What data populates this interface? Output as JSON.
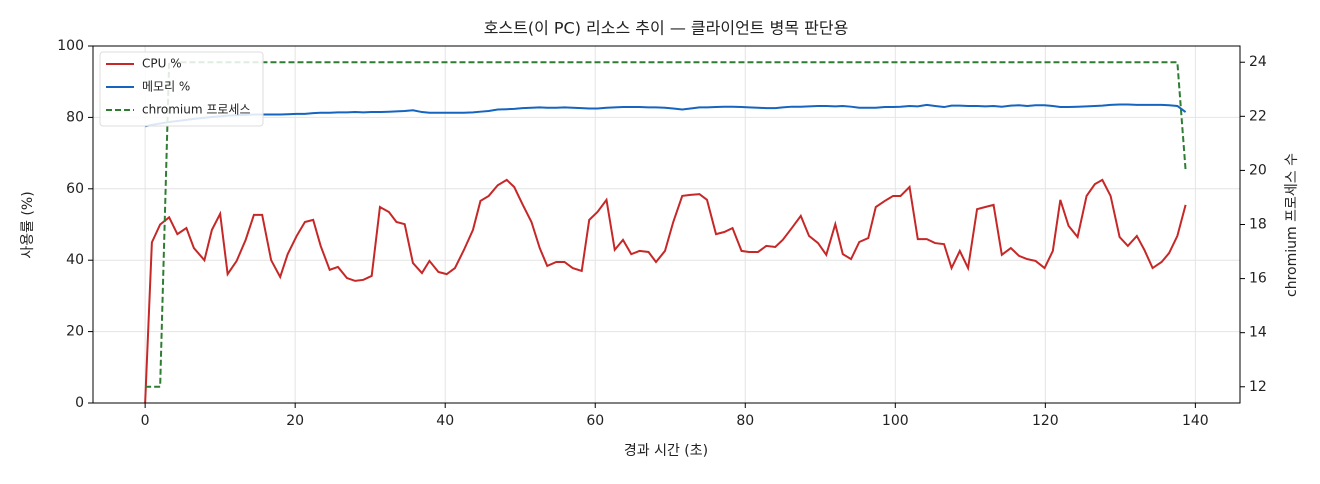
{
  "chart_data": {
    "type": "line",
    "title": "호스트(이 PC) 리소스 추이 — 클라이언트 병목 판단용",
    "xlabel": "경과 시간 (초)",
    "ylabel": "사용률 (%)",
    "y2label": "chromium 프로세스 수",
    "x": [
      0,
      0.9,
      2,
      3.2,
      4.3,
      5.5,
      6.5,
      7.9,
      8.9,
      10,
      11,
      12.2,
      13.4,
      14.5,
      15.6,
      16.8,
      18,
      19,
      20.2,
      21.3,
      22.4,
      23.4,
      24.6,
      25.7,
      26.9,
      28,
      29.1,
      30.2,
      31.3,
      32.5,
      33.5,
      34.6,
      35.7,
      36.9,
      37.9,
      39.1,
      40.2,
      41.3,
      42.5,
      43.7,
      44.7,
      45.8,
      47,
      48.2,
      49.2,
      50.3,
      51.5,
      52.6,
      53.6,
      54.8,
      55.9,
      57,
      58.2,
      59.2,
      60.3,
      61.5,
      62.6,
      63.7,
      64.8,
      65.9,
      67.1,
      68.1,
      69.3,
      70.4,
      71.6,
      72.7,
      73.9,
      74.9,
      76.1,
      77.2,
      78.3,
      79.5,
      80.5,
      81.7,
      82.8,
      84,
      85,
      86.2,
      87.4,
      88.5,
      89.7,
      90.8,
      92,
      93,
      94.1,
      95.2,
      96.4,
      97.4,
      98.6,
      99.7,
      100.7,
      101.9,
      103,
      104.2,
      105.3,
      106.5,
      107.5,
      108.6,
      109.7,
      110.9,
      112,
      113.1,
      114.2,
      115.4,
      116.5,
      117.6,
      118.7,
      119.9,
      121,
      122,
      123.1,
      124.3,
      125.5,
      126.6,
      127.6,
      128.7,
      129.9,
      131,
      132.2,
      133.2,
      134.3,
      135.5,
      136.5,
      137.6,
      138.7
    ],
    "series": [
      {
        "name": "CPU %",
        "color": "#c62828",
        "linestyle": "solid",
        "axis": "y",
        "values": [
          0,
          45,
          50,
          52,
          47.3,
          49,
          43.4,
          40,
          48.5,
          53,
          36.1,
          39.8,
          45.7,
          52.7,
          52.7,
          40,
          35.3,
          41.7,
          46.8,
          50.7,
          51.3,
          44,
          37.3,
          38.1,
          35,
          34.2,
          34.5,
          35.6,
          54.9,
          53.5,
          50.7,
          50.1,
          39.2,
          36.4,
          39.8,
          36.7,
          36.1,
          37.8,
          42.9,
          48.5,
          56.6,
          58,
          61,
          62.5,
          60.5,
          55.7,
          50.7,
          43.4,
          38.4,
          39.5,
          39.5,
          37.8,
          37,
          51.3,
          53.5,
          56.9,
          42.9,
          45.7,
          41.7,
          42.6,
          42.3,
          39.5,
          42.6,
          50.7,
          58,
          58.3,
          58.5,
          56.9,
          47.3,
          47.9,
          49,
          42.6,
          42.3,
          42.3,
          44,
          43.7,
          45.7,
          49,
          52.4,
          46.8,
          44.8,
          41.5,
          50.1,
          41.7,
          40.3,
          45.1,
          46.2,
          54.9,
          56.6,
          58,
          58,
          60.5,
          45.9,
          45.9,
          44.8,
          44.5,
          37.8,
          42.6,
          37.8,
          54.3,
          54.9,
          55.5,
          41.5,
          43.4,
          41.2,
          40.3,
          39.8,
          37.8,
          42.6,
          56.9,
          49.6,
          46.5,
          58,
          61.3,
          62.5,
          58,
          46.5,
          44,
          46.8,
          42.9,
          37.8,
          39.5,
          42,
          46.8,
          55.5
        ]
      },
      {
        "name": "메모리 %",
        "color": "#1565c0",
        "linestyle": "solid",
        "axis": "y",
        "values": [
          77.5,
          77.9,
          78.3,
          78.7,
          79,
          79.3,
          79.6,
          79.9,
          80.1,
          80.3,
          80.5,
          80.6,
          80.7,
          80.8,
          80.8,
          80.8,
          80.8,
          80.9,
          81,
          81,
          81.2,
          81.3,
          81.3,
          81.4,
          81.4,
          81.5,
          81.4,
          81.5,
          81.5,
          81.6,
          81.7,
          81.8,
          82,
          81.5,
          81.3,
          81.3,
          81.3,
          81.3,
          81.3,
          81.4,
          81.6,
          81.8,
          82.2,
          82.3,
          82.4,
          82.6,
          82.7,
          82.8,
          82.7,
          82.7,
          82.8,
          82.7,
          82.6,
          82.5,
          82.5,
          82.7,
          82.8,
          82.9,
          82.9,
          82.9,
          82.8,
          82.8,
          82.7,
          82.5,
          82.2,
          82.5,
          82.8,
          82.8,
          82.9,
          83,
          83,
          82.9,
          82.8,
          82.7,
          82.6,
          82.6,
          82.8,
          83,
          83,
          83.1,
          83.2,
          83.2,
          83.1,
          83.2,
          83,
          82.7,
          82.7,
          82.7,
          82.9,
          82.9,
          83,
          83.2,
          83.1,
          83.5,
          83.2,
          82.9,
          83.3,
          83.3,
          83.2,
          83.2,
          83.1,
          83.2,
          83,
          83.3,
          83.4,
          83.2,
          83.4,
          83.4,
          83.2,
          82.9,
          82.9,
          83,
          83.1,
          83.2,
          83.3,
          83.5,
          83.6,
          83.6,
          83.5,
          83.5,
          83.5,
          83.5,
          83.4,
          83.2,
          81.5
        ]
      },
      {
        "name": "chromium 프로세스",
        "color": "#2e7d32",
        "linestyle": "dashed",
        "axis": "y2",
        "values": [
          12,
          12,
          12,
          24,
          24,
          24,
          24,
          24,
          24,
          24,
          24,
          24,
          24,
          24,
          24,
          24,
          24,
          24,
          24,
          24,
          24,
          24,
          24,
          24,
          24,
          24,
          24,
          24,
          24,
          24,
          24,
          24,
          24,
          24,
          24,
          24,
          24,
          24,
          24,
          24,
          24,
          24,
          24,
          24,
          24,
          24,
          24,
          24,
          24,
          24,
          24,
          24,
          24,
          24,
          24,
          24,
          24,
          24,
          24,
          24,
          24,
          24,
          24,
          24,
          24,
          24,
          24,
          24,
          24,
          24,
          24,
          24,
          24,
          24,
          24,
          24,
          24,
          24,
          24,
          24,
          24,
          24,
          24,
          24,
          24,
          24,
          24,
          24,
          24,
          24,
          24,
          24,
          24,
          24,
          24,
          24,
          24,
          24,
          24,
          24,
          24,
          24,
          24,
          24,
          24,
          24,
          24,
          24,
          24,
          24,
          24,
          24,
          24,
          24,
          24,
          24,
          24,
          24,
          24,
          24,
          24,
          24,
          24,
          24,
          20
        ]
      }
    ],
    "xlim": [
      -6.95,
      145.95
    ],
    "xticks": [
      0,
      20,
      40,
      60,
      80,
      100,
      120,
      140
    ],
    "ylim": [
      0,
      100
    ],
    "yticks": [
      0,
      20,
      40,
      60,
      80,
      100
    ],
    "y2lim": [
      11.4,
      24.6
    ],
    "y2ticks": [
      12,
      14,
      16,
      18,
      20,
      22,
      24
    ],
    "grid": true,
    "legend": "upper left"
  }
}
